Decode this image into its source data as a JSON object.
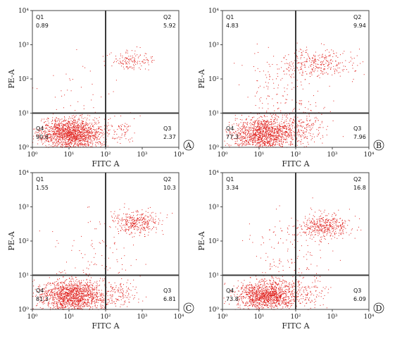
{
  "colors": {
    "dots": "#e0201c",
    "gate": "#3a3a3a",
    "frame": "#444444"
  },
  "chart_data": [
    {
      "type": "scatter",
      "panel": "A",
      "xlabel": "FITC A",
      "ylabel": "PE-A",
      "x_scale": "log",
      "y_scale": "log",
      "xlim": [
        1,
        10000
      ],
      "ylim": [
        1,
        10000
      ],
      "x_ticks": [
        "10⁰",
        "10¹",
        "10²",
        "10³",
        "10⁴"
      ],
      "y_ticks": [
        "10⁰",
        "10¹",
        "10²",
        "10³",
        "10⁴"
      ],
      "gate": {
        "x": 100,
        "y": 10
      },
      "quadrants": [
        {
          "name": "Q1",
          "value": "0.89"
        },
        {
          "name": "Q2",
          "value": "5.92"
        },
        {
          "name": "Q3",
          "value": "2.37"
        },
        {
          "name": "Q4",
          "value": "90.8"
        }
      ]
    },
    {
      "type": "scatter",
      "panel": "B",
      "xlabel": "FITC A",
      "ylabel": "PE-A",
      "x_scale": "log",
      "y_scale": "log",
      "xlim": [
        1,
        10000
      ],
      "ylim": [
        1,
        10000
      ],
      "x_ticks": [
        "10⁰",
        "10¹",
        "10²",
        "10³",
        "10⁴"
      ],
      "y_ticks": [
        "10⁰",
        "10¹",
        "10²",
        "10³",
        "10⁴"
      ],
      "gate": {
        "x": 100,
        "y": 10
      },
      "quadrants": [
        {
          "name": "Q1",
          "value": "4.83"
        },
        {
          "name": "Q2",
          "value": "9.94"
        },
        {
          "name": "Q3",
          "value": "7.96"
        },
        {
          "name": "Q4",
          "value": "77.3"
        }
      ]
    },
    {
      "type": "scatter",
      "panel": "C",
      "xlabel": "FITC A",
      "ylabel": "PE-A",
      "x_scale": "log",
      "y_scale": "log",
      "xlim": [
        1,
        10000
      ],
      "ylim": [
        1,
        10000
      ],
      "x_ticks": [
        "10⁰",
        "10¹",
        "10²",
        "10³",
        "10⁴"
      ],
      "y_ticks": [
        "10⁰",
        "10¹",
        "10²",
        "10³",
        "10⁴"
      ],
      "gate": {
        "x": 100,
        "y": 10
      },
      "quadrants": [
        {
          "name": "Q1",
          "value": "1.55"
        },
        {
          "name": "Q2",
          "value": "10.3"
        },
        {
          "name": "Q3",
          "value": "6.81"
        },
        {
          "name": "Q4",
          "value": "81.3"
        }
      ]
    },
    {
      "type": "scatter",
      "panel": "D",
      "xlabel": "FITC A",
      "ylabel": "PE-A",
      "x_scale": "log",
      "y_scale": "log",
      "xlim": [
        1,
        10000
      ],
      "ylim": [
        1,
        10000
      ],
      "x_ticks": [
        "10⁰",
        "10¹",
        "10²",
        "10³",
        "10⁴"
      ],
      "y_ticks": [
        "10⁰",
        "10¹",
        "10²",
        "10³",
        "10⁴"
      ],
      "gate": {
        "x": 100,
        "y": 10
      },
      "quadrants": [
        {
          "name": "Q1",
          "value": "3.34"
        },
        {
          "name": "Q2",
          "value": "16.8"
        },
        {
          "name": "Q3",
          "value": "6.09"
        },
        {
          "name": "Q4",
          "value": "73.8"
        }
      ]
    }
  ]
}
